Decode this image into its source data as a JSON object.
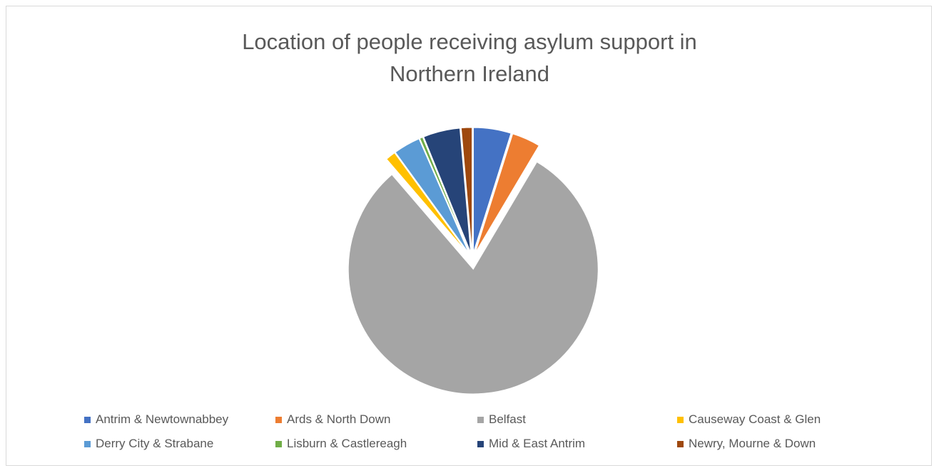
{
  "chart_data": {
    "type": "pie",
    "title_lines": [
      "Location of people receiving asylum support in",
      "Northern Ireland"
    ],
    "exploded": true,
    "legend_position": "bottom",
    "series": [
      {
        "name": "Antrim & Newtownabbey",
        "value": 4.9,
        "color": "#4472c4"
      },
      {
        "name": "Ards & North Down",
        "value": 3.7,
        "color": "#ed7d31"
      },
      {
        "name": "Belfast",
        "value": 81.0,
        "color": "#a5a5a5"
      },
      {
        "name": "Causeway Coast & Glen",
        "value": 1.3,
        "color": "#ffc000"
      },
      {
        "name": "Derry City & Strabane",
        "value": 3.5,
        "color": "#5b9bd5"
      },
      {
        "name": "Lisburn & Castlereagh",
        "value": 0.4,
        "color": "#70ad47"
      },
      {
        "name": "Mid & East Antrim",
        "value": 4.8,
        "color": "#264478"
      },
      {
        "name": "Newry, Mourne & Down",
        "value": 1.4,
        "color": "#9e480e"
      }
    ]
  }
}
